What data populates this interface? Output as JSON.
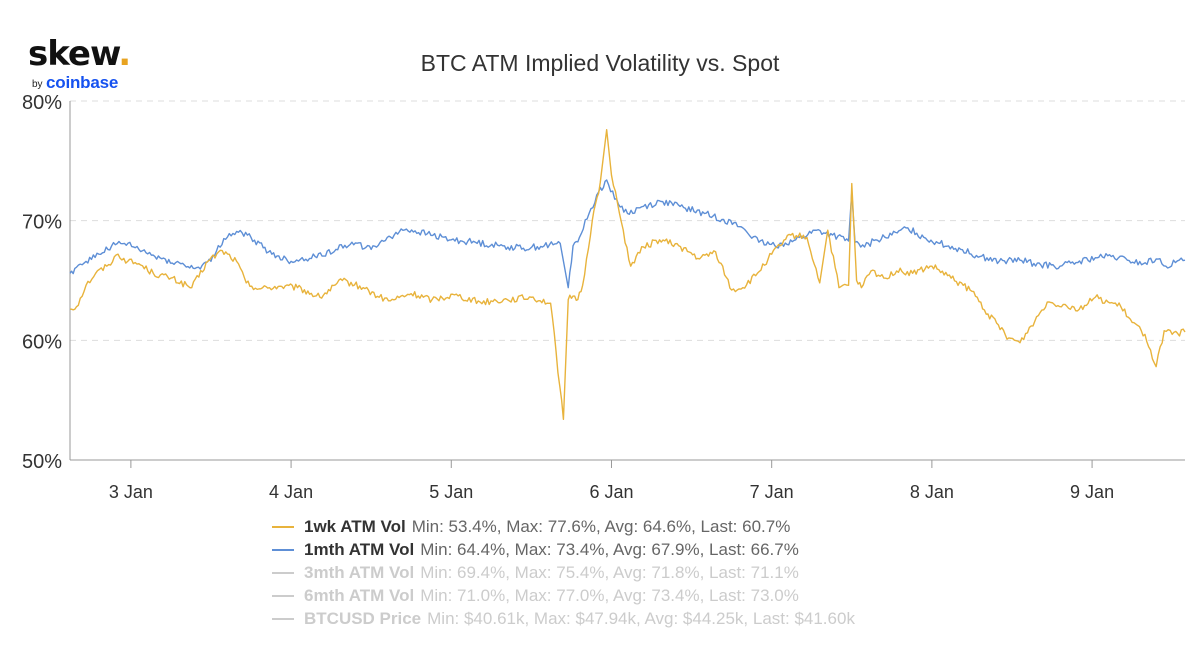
{
  "logo": {
    "word": "skew",
    "dot": ".",
    "by": "by",
    "brand": "coinbase"
  },
  "chart_data": {
    "type": "line",
    "title": "BTC ATM Implied Volatility vs. Spot",
    "xlabel": "",
    "ylabel": "",
    "x_ticks": [
      "3 Jan",
      "4 Jan",
      "5 Jan",
      "6 Jan",
      "7 Jan",
      "8 Jan",
      "9 Jan"
    ],
    "x_range_days": [
      -0.38,
      6.58
    ],
    "y_ticks": [
      "50%",
      "60%",
      "70%",
      "80%"
    ],
    "y_tick_values": [
      50,
      60,
      70,
      80
    ],
    "ylim": [
      50,
      80
    ],
    "grid": "horizontal dashed",
    "legend_position": "bottom",
    "series": [
      {
        "name": "1wk ATM Vol",
        "stats": "Min: 53.4%, Max: 77.6%, Avg: 64.6%, Last: 60.7%",
        "color": "#e8b33c",
        "visible": true,
        "x": [
          -0.38,
          -0.34,
          -0.28,
          -0.22,
          -0.15,
          -0.08,
          -0.02,
          0.05,
          0.14,
          0.25,
          0.38,
          0.48,
          0.57,
          0.66,
          0.72,
          0.8,
          0.92,
          1.04,
          1.18,
          1.32,
          1.45,
          1.55,
          1.62,
          1.75,
          1.88,
          2.02,
          2.18,
          2.35,
          2.5,
          2.62,
          2.7,
          2.73,
          2.76,
          2.79,
          2.82,
          2.88,
          2.93,
          2.97,
          3.0,
          3.05,
          3.12,
          3.2,
          3.3,
          3.42,
          3.55,
          3.65,
          3.75,
          3.82,
          3.9,
          4.0,
          4.12,
          4.22,
          4.3,
          4.35,
          4.42,
          4.48,
          4.5,
          4.53,
          4.56,
          4.62,
          4.7,
          4.78,
          4.88,
          5.0,
          5.12,
          5.25,
          5.35,
          5.48,
          5.55,
          5.62,
          5.72,
          5.82,
          5.92,
          6.02,
          6.1,
          6.18,
          6.25,
          6.33,
          6.4,
          6.45,
          6.5,
          6.58
        ],
        "y": [
          62.6,
          62.8,
          64.6,
          65.6,
          66.2,
          67.2,
          66.6,
          66.4,
          65.6,
          65.2,
          64.4,
          66.6,
          67.5,
          66.6,
          64.8,
          64.3,
          64.5,
          64.4,
          63.6,
          65.0,
          64.4,
          63.6,
          63.3,
          63.9,
          63.4,
          63.8,
          63.2,
          63.4,
          63.6,
          63.1,
          53.4,
          63.4,
          63.7,
          63.4,
          64.6,
          70.0,
          73.2,
          77.6,
          73.8,
          70.6,
          66.2,
          67.8,
          68.4,
          67.9,
          66.8,
          67.4,
          64.2,
          64.4,
          65.4,
          67.2,
          68.8,
          68.6,
          64.8,
          69.2,
          64.4,
          64.6,
          73.1,
          65.0,
          64.4,
          65.8,
          65.2,
          65.8,
          65.6,
          66.2,
          65.2,
          64.1,
          62.2,
          60.2,
          59.8,
          61.2,
          63.2,
          63.0,
          62.6,
          63.6,
          63.2,
          62.8,
          61.5,
          60.5,
          57.8,
          60.8,
          60.5,
          60.7
        ]
      },
      {
        "name": "1mth ATM Vol",
        "stats": "Min: 64.4%, Max: 73.4%, Avg: 67.9%, Last: 66.7%",
        "color": "#5e8fd6",
        "visible": true,
        "x": [
          -0.38,
          -0.34,
          -0.28,
          -0.2,
          -0.12,
          -0.04,
          0.05,
          0.15,
          0.28,
          0.4,
          0.5,
          0.58,
          0.66,
          0.75,
          0.88,
          1.0,
          1.15,
          1.28,
          1.38,
          1.5,
          1.6,
          1.72,
          1.85,
          2.0,
          2.15,
          2.3,
          2.45,
          2.58,
          2.68,
          2.73,
          2.76,
          2.8,
          2.86,
          2.92,
          2.97,
          3.02,
          3.1,
          3.2,
          3.32,
          3.45,
          3.58,
          3.7,
          3.82,
          3.92,
          4.02,
          4.15,
          4.28,
          4.38,
          4.48,
          4.5,
          4.52,
          4.58,
          4.65,
          4.75,
          4.85,
          4.95,
          5.05,
          5.18,
          5.3,
          5.42,
          5.55,
          5.68,
          5.8,
          5.9,
          6.02,
          6.12,
          6.22,
          6.32,
          6.4,
          6.46,
          6.52,
          6.58
        ],
        "y": [
          65.6,
          66.1,
          66.6,
          67.2,
          67.9,
          68.1,
          67.6,
          67.0,
          66.5,
          66.0,
          66.6,
          68.5,
          69.1,
          68.6,
          67.2,
          66.6,
          67.0,
          67.6,
          68.2,
          67.6,
          68.6,
          69.3,
          68.9,
          68.4,
          68.2,
          67.9,
          67.7,
          67.9,
          68.1,
          64.4,
          67.9,
          68.6,
          70.6,
          72.4,
          73.4,
          71.8,
          70.6,
          71.2,
          71.6,
          71.1,
          70.6,
          70.1,
          69.4,
          68.2,
          67.9,
          68.4,
          69.2,
          68.8,
          68.3,
          72.4,
          68.2,
          67.8,
          68.4,
          68.8,
          69.4,
          68.6,
          68.1,
          67.6,
          67.0,
          66.6,
          66.7,
          66.3,
          66.2,
          66.5,
          66.9,
          67.0,
          66.7,
          66.4,
          66.8,
          66.2,
          66.5,
          66.7
        ]
      },
      {
        "name": "3mth ATM Vol",
        "stats": "Min: 69.4%, Max: 75.4%, Avg: 71.8%, Last: 71.1%",
        "color": "#cccccc",
        "visible": false
      },
      {
        "name": "6mth ATM Vol",
        "stats": "Min: 71.0%, Max: 77.0%, Avg: 73.4%, Last: 73.0%",
        "color": "#cccccc",
        "visible": false
      },
      {
        "name": "BTCUSD Price",
        "stats": "Min: $40.61k, Max: $47.94k, Avg: $44.25k, Last: $41.60k",
        "color": "#cccccc",
        "visible": false
      }
    ]
  }
}
